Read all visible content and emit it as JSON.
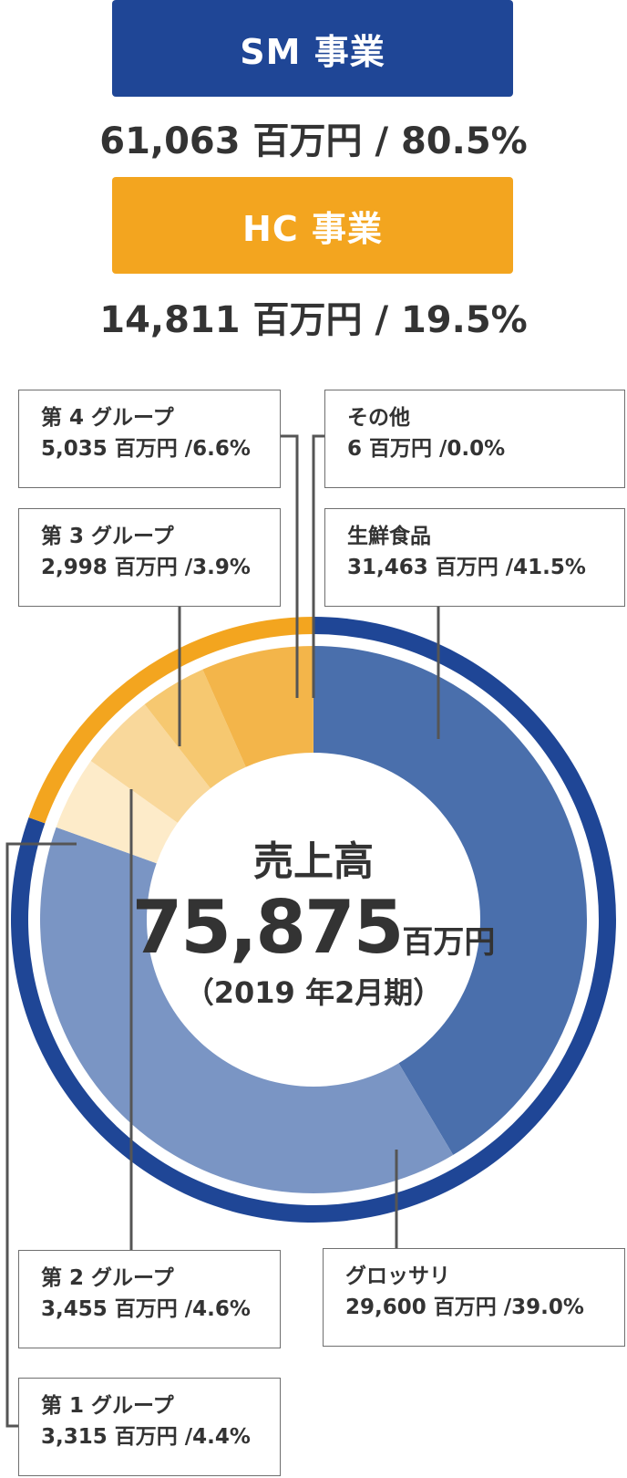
{
  "segments": [
    {
      "label": "SM 事業",
      "value": "61,063 百万円 / 80.5%",
      "color": "#1f4696"
    },
    {
      "label": "HC 事業",
      "value": "14,811 百万円 / 19.5%",
      "color": "#f3a51f"
    }
  ],
  "center": {
    "title": "売上高",
    "total": "75,875",
    "unit": "百万円",
    "period": "（2019 年2月期）"
  },
  "labels": {
    "g4": {
      "name": "第 4 グループ",
      "value": "5,035 百万円 /6.6%"
    },
    "other": {
      "name": "その他",
      "value": "6 百万円 /0.0%"
    },
    "g3": {
      "name": "第 3 グループ",
      "value": "2,998 百万円 /3.9%"
    },
    "fresh": {
      "name": "生鮮食品",
      "value": "31,463 百万円 /41.5%"
    },
    "g2": {
      "name": "第 2 グループ",
      "value": "3,455 百万円 /4.6%"
    },
    "grocery": {
      "name": "グロッサリ",
      "value": "29,600 百万円 /39.0%"
    },
    "g1": {
      "name": "第 1 グループ",
      "value": "3,315 百万円 /4.4%"
    }
  },
  "chart_data": {
    "type": "pie",
    "title": "売上高",
    "total": 75875,
    "unit": "百万円",
    "outer_ring": [
      {
        "name": "SM 事業",
        "value": 61063,
        "percent": 80.5,
        "color": "#1f4696"
      },
      {
        "name": "HC 事業",
        "value": 14811,
        "percent": 19.5,
        "color": "#f3a51f"
      }
    ],
    "inner_ring": [
      {
        "name": "生鮮食品",
        "value": 31463,
        "percent": 41.5,
        "color": "#4a6fac"
      },
      {
        "name": "グロッサリ",
        "value": 29600,
        "percent": 39.0,
        "color": "#7a95c4"
      },
      {
        "name": "第 1 グループ",
        "value": 3315,
        "percent": 4.4,
        "color": "#fdebc9"
      },
      {
        "name": "第 2 グループ",
        "value": 3455,
        "percent": 4.6,
        "color": "#f9d89b"
      },
      {
        "name": "第 3 グループ",
        "value": 2998,
        "percent": 3.9,
        "color": "#f6c870"
      },
      {
        "name": "第 4 グループ",
        "value": 5035,
        "percent": 6.6,
        "color": "#f3b54a"
      },
      {
        "name": "その他",
        "value": 6,
        "percent": 0.0,
        "color": "#f3b54a"
      }
    ]
  }
}
